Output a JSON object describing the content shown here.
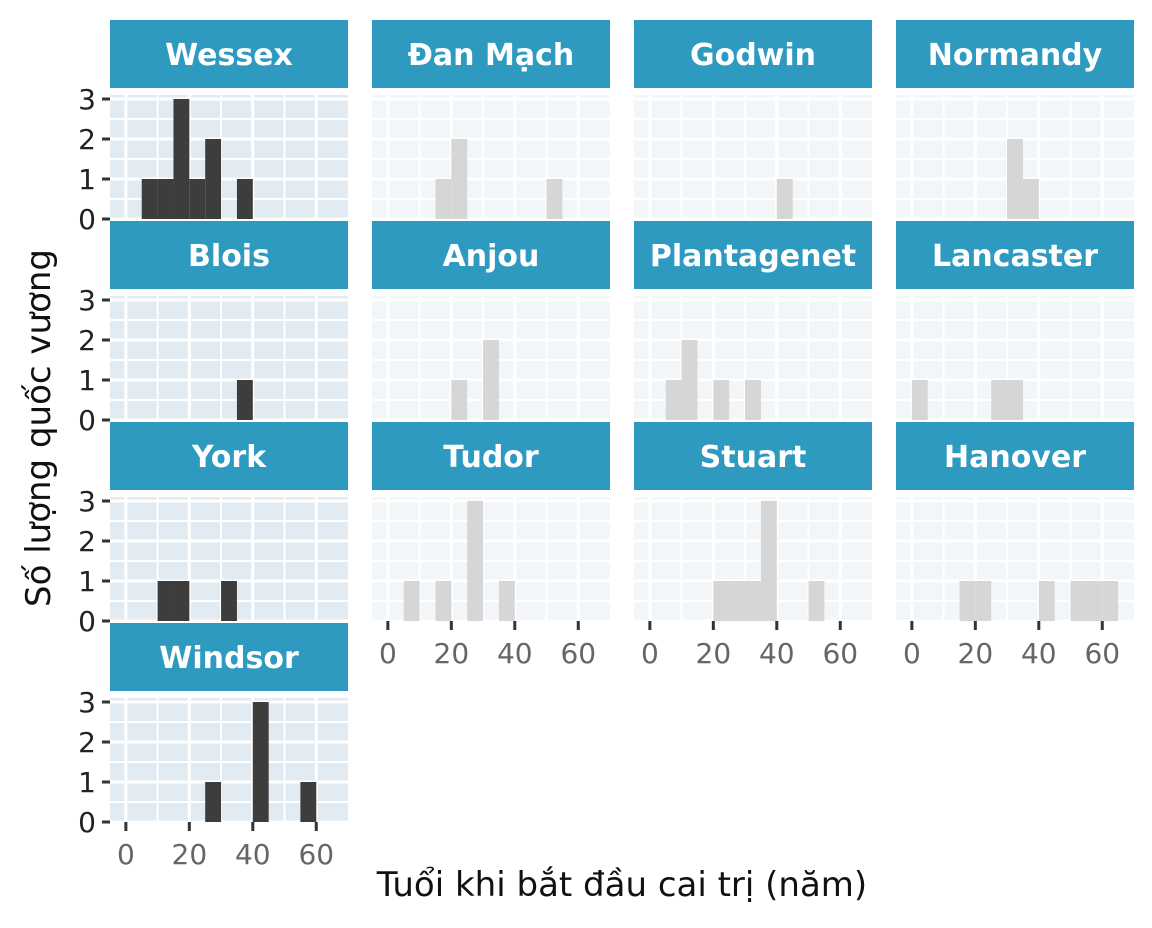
{
  "chart_data": {
    "type": "histogram",
    "xlabel": "Tuổi khi bắt đầu cai trị (năm)",
    "ylabel": "Số lượng quốc vương",
    "xlim": [
      -5,
      70
    ],
    "ylim": [
      0,
      3
    ],
    "x_ticks": [
      0,
      20,
      40,
      60
    ],
    "y_ticks": [
      0,
      1,
      2,
      3
    ],
    "bin_width": 5,
    "grid": true,
    "panels": [
      {
        "name": "Wessex",
        "highlighted": true,
        "bins": [
          {
            "start": 5,
            "count": 1
          },
          {
            "start": 10,
            "count": 1
          },
          {
            "start": 15,
            "count": 3
          },
          {
            "start": 20,
            "count": 1
          },
          {
            "start": 25,
            "count": 2
          },
          {
            "start": 35,
            "count": 1
          }
        ]
      },
      {
        "name": "Đan Mạch",
        "highlighted": false,
        "bins": [
          {
            "start": 15,
            "count": 1
          },
          {
            "start": 20,
            "count": 2
          },
          {
            "start": 50,
            "count": 1
          }
        ]
      },
      {
        "name": "Godwin",
        "highlighted": false,
        "bins": [
          {
            "start": 40,
            "count": 1
          }
        ]
      },
      {
        "name": "Normandy",
        "highlighted": false,
        "bins": [
          {
            "start": 30,
            "count": 2
          },
          {
            "start": 35,
            "count": 1
          }
        ]
      },
      {
        "name": "Blois",
        "highlighted": true,
        "bins": [
          {
            "start": 35,
            "count": 1
          }
        ]
      },
      {
        "name": "Anjou",
        "highlighted": false,
        "bins": [
          {
            "start": 20,
            "count": 1
          },
          {
            "start": 30,
            "count": 2
          }
        ]
      },
      {
        "name": "Plantagenet",
        "highlighted": false,
        "bins": [
          {
            "start": 5,
            "count": 1
          },
          {
            "start": 10,
            "count": 2
          },
          {
            "start": 20,
            "count": 1
          },
          {
            "start": 30,
            "count": 1
          }
        ]
      },
      {
        "name": "Lancaster",
        "highlighted": false,
        "bins": [
          {
            "start": 0,
            "count": 1
          },
          {
            "start": 25,
            "count": 1
          },
          {
            "start": 30,
            "count": 1
          }
        ]
      },
      {
        "name": "York",
        "highlighted": true,
        "bins": [
          {
            "start": 10,
            "count": 1
          },
          {
            "start": 15,
            "count": 1
          },
          {
            "start": 30,
            "count": 1
          }
        ]
      },
      {
        "name": "Tudor",
        "highlighted": false,
        "bins": [
          {
            "start": 5,
            "count": 1
          },
          {
            "start": 15,
            "count": 1
          },
          {
            "start": 25,
            "count": 3
          },
          {
            "start": 35,
            "count": 1
          }
        ]
      },
      {
        "name": "Stuart",
        "highlighted": false,
        "bins": [
          {
            "start": 20,
            "count": 1
          },
          {
            "start": 25,
            "count": 1
          },
          {
            "start": 30,
            "count": 1
          },
          {
            "start": 35,
            "count": 3
          },
          {
            "start": 50,
            "count": 1
          }
        ]
      },
      {
        "name": "Hanover",
        "highlighted": false,
        "bins": [
          {
            "start": 15,
            "count": 1
          },
          {
            "start": 20,
            "count": 1
          },
          {
            "start": 40,
            "count": 1
          },
          {
            "start": 50,
            "count": 1
          },
          {
            "start": 55,
            "count": 1
          },
          {
            "start": 60,
            "count": 1
          }
        ]
      },
      {
        "name": "Windsor",
        "highlighted": true,
        "bins": [
          {
            "start": 25,
            "count": 1
          },
          {
            "start": 40,
            "count": 3
          },
          {
            "start": 55,
            "count": 1
          }
        ]
      }
    ]
  },
  "colors": {
    "strip": "#2f9ac0",
    "bar_highlight": "#3d3d3d",
    "bar_muted": "#d6d6d6",
    "panel_bg_highlight": "#e2ebf2",
    "panel_bg_muted": "#f3f6f9"
  }
}
